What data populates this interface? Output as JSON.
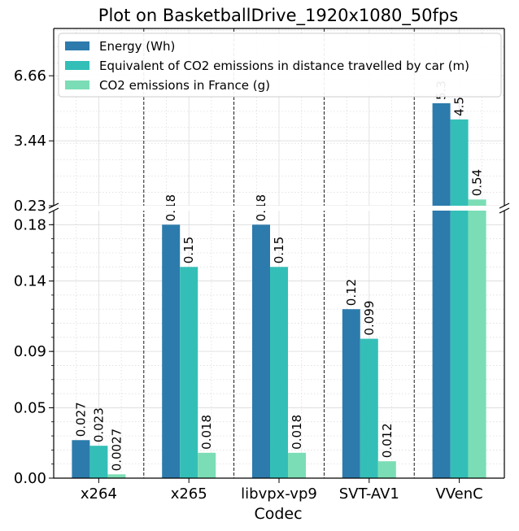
{
  "chart_data": {
    "type": "bar",
    "title": "Plot on BasketballDrive_1920x1080_50fps",
    "xlabel": "Codec",
    "ylabel": "",
    "categories": [
      "x264",
      "x265",
      "libvpx-vp9",
      "SVT-AV1",
      "VVenC"
    ],
    "series": [
      {
        "name": "Energy (Wh)",
        "color": "#2c7bac",
        "values": [
          0.027,
          0.18,
          0.18,
          0.12,
          5.3
        ],
        "labels": [
          "0.027",
          "0.18",
          "0.18",
          "0.12",
          "5.3"
        ]
      },
      {
        "name": "Equivalent of CO2 emissions in distance travelled by car (m)",
        "color": "#33bfb7",
        "values": [
          0.023,
          0.15,
          0.15,
          0.099,
          4.5
        ],
        "labels": [
          "0.023",
          "0.15",
          "0.15",
          "0.099",
          "4.5"
        ]
      },
      {
        "name": "CO2 emissions in France (g)",
        "color": "#7bddb5",
        "values": [
          0.0027,
          0.018,
          0.018,
          0.012,
          0.54
        ],
        "labels": [
          "0.0027",
          "0.018",
          "0.018",
          "0.012",
          "0.54"
        ]
      }
    ],
    "broken_axis": true,
    "lower_axis": {
      "ylim": [
        0,
        0.19
      ],
      "ticks": [
        0.0,
        0.05,
        0.09,
        0.14,
        0.18
      ],
      "tick_labels": [
        "0.00",
        "0.05",
        "0.09",
        "0.14",
        "0.18"
      ]
    },
    "upper_axis": {
      "ylim": [
        0.23,
        9.0
      ],
      "ticks": [
        0.23,
        3.44,
        6.66
      ],
      "tick_labels": [
        "0.23",
        "3.44",
        "6.66"
      ]
    },
    "legend_position": "upper-left",
    "grid": true
  }
}
